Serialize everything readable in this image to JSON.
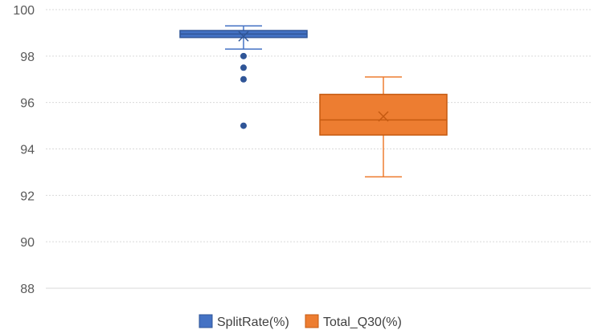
{
  "chart_data": {
    "type": "box",
    "title": "",
    "xlabel": "",
    "ylabel": "",
    "ylim": [
      88,
      100
    ],
    "yticks": [
      88,
      90,
      92,
      94,
      96,
      98,
      100
    ],
    "grid": true,
    "legend_position": "bottom",
    "series": [
      {
        "name": "SplitRate(%)",
        "color": "#4472C4",
        "min": 98.3,
        "q1": 98.8,
        "median": 98.95,
        "q3": 99.1,
        "max": 99.3,
        "mean": 98.85,
        "outliers": [
          98.0,
          97.5,
          97.0,
          95.0
        ]
      },
      {
        "name": "Total_Q30(%)",
        "color": "#ED7D31",
        "min": 92.8,
        "q1": 94.6,
        "median": 95.25,
        "q3": 96.35,
        "max": 97.1,
        "mean": 95.4,
        "outliers": []
      }
    ]
  }
}
